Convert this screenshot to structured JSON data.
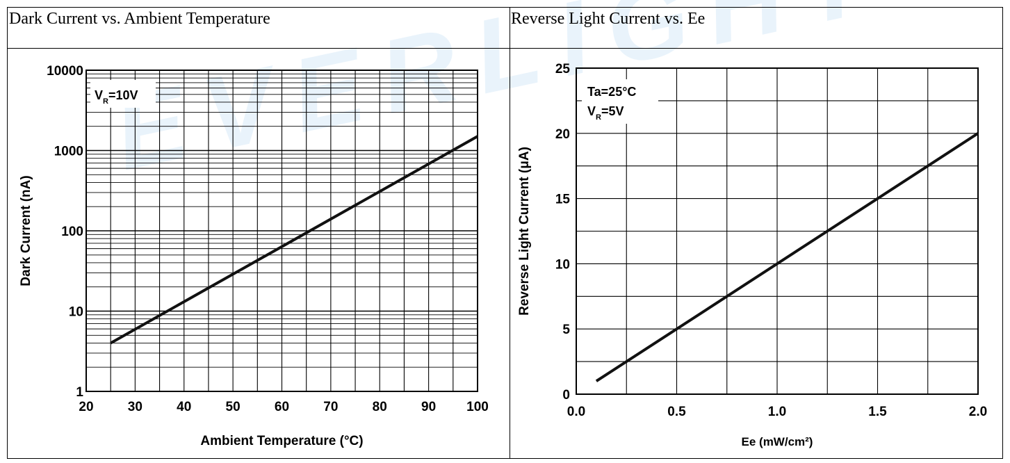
{
  "watermark": "EVERLIGHT",
  "chart_data": [
    {
      "type": "line",
      "title": "Dark Current vs. Ambient Temperature",
      "xlabel": "Ambient Temperature (°C)",
      "ylabel": "Dark Current (nA)",
      "xlim": [
        20,
        100
      ],
      "ylim": [
        1,
        10000
      ],
      "yscale": "log",
      "grid": true,
      "xticks": [
        "20",
        "30",
        "40",
        "50",
        "60",
        "70",
        "80",
        "90",
        "100"
      ],
      "yticks": [
        "1",
        "10",
        "100",
        "1000",
        "10000"
      ],
      "annotation": {
        "main": "V",
        "sub": "R",
        "rest": "=10V"
      },
      "series": [
        {
          "x": [
            25,
            100
          ],
          "y": [
            4,
            1500
          ]
        }
      ]
    },
    {
      "type": "line",
      "title": "Reverse Light Current vs. Ee",
      "xlabel": "Ee (mW/cm²)",
      "ylabel": "Reverse Light Current  (μA)",
      "xlim": [
        0,
        2
      ],
      "ylim": [
        0,
        25
      ],
      "grid": true,
      "xticks": [
        "0.0",
        "0.5",
        "1.0",
        "1.5",
        "2.0"
      ],
      "yticks": [
        "0",
        "5",
        "10",
        "15",
        "20",
        "25"
      ],
      "annotation": {
        "line1": "Ta=25°C",
        "main": "V",
        "sub": "R",
        "rest": "=5V"
      },
      "series": [
        {
          "x": [
            0.1,
            2.0
          ],
          "y": [
            1.0,
            20.0
          ]
        }
      ]
    }
  ]
}
